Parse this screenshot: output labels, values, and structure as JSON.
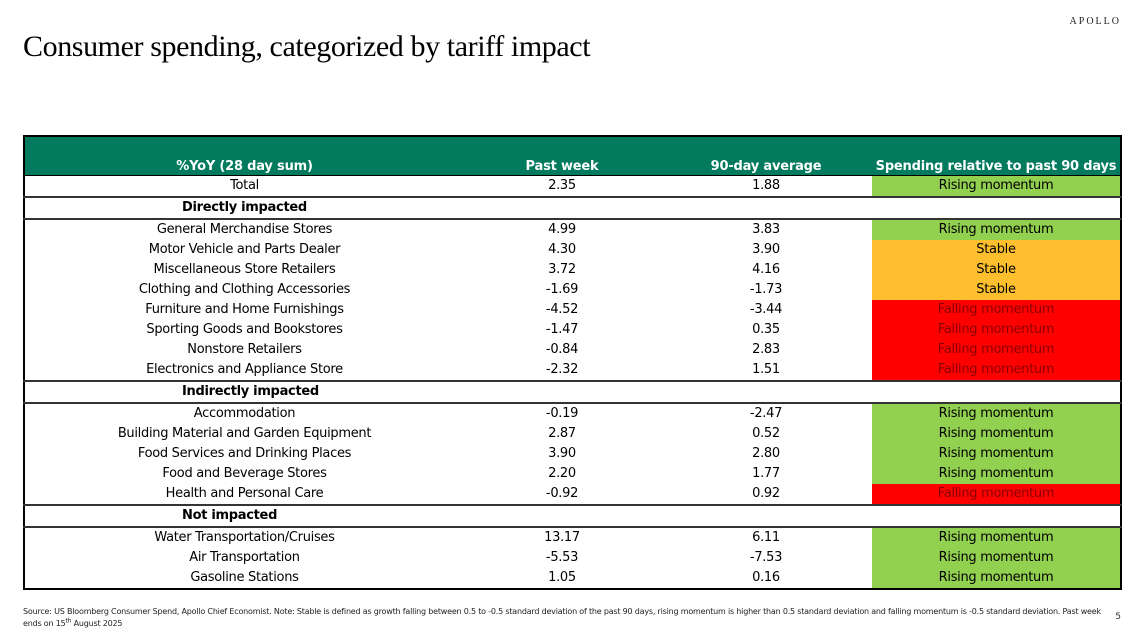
{
  "logo": "APOLLO",
  "title": "Consumer spending, categorized by tariff impact",
  "table": {
    "headers": [
      "%YoY (28 day sum)",
      "Past week",
      "90-day average",
      "Spending relative to past 90 days"
    ],
    "total": {
      "label": "Total",
      "past_week": "2.35",
      "avg_90": "1.88",
      "status": "Rising momentum",
      "status_type": "rising"
    },
    "sections": [
      {
        "title": "Directly impacted",
        "rows": [
          {
            "label": "General Merchandise Stores",
            "past_week": "4.99",
            "avg_90": "3.83",
            "status": "Rising momentum",
            "status_type": "rising"
          },
          {
            "label": "Motor Vehicle and Parts Dealer",
            "past_week": "4.30",
            "avg_90": "3.90",
            "status": "Stable",
            "status_type": "stable"
          },
          {
            "label": "Miscellaneous Store Retailers",
            "past_week": "3.72",
            "avg_90": "4.16",
            "status": "Stable",
            "status_type": "stable"
          },
          {
            "label": "Clothing and Clothing Accessories",
            "past_week": "-1.69",
            "avg_90": "-1.73",
            "status": "Stable",
            "status_type": "stable"
          },
          {
            "label": "Furniture and Home Furnishings",
            "past_week": "-4.52",
            "avg_90": "-3.44",
            "status": "Falling momentum",
            "status_type": "falling"
          },
          {
            "label": "Sporting Goods and Bookstores",
            "past_week": "-1.47",
            "avg_90": "0.35",
            "status": "Falling momentum",
            "status_type": "falling"
          },
          {
            "label": "Nonstore Retailers",
            "past_week": "-0.84",
            "avg_90": "2.83",
            "status": "Falling momentum",
            "status_type": "falling"
          },
          {
            "label": "Electronics and Appliance Store",
            "past_week": "-2.32",
            "avg_90": "1.51",
            "status": "Falling momentum",
            "status_type": "falling"
          }
        ]
      },
      {
        "title": "Indirectly impacted",
        "rows": [
          {
            "label": "Accommodation",
            "past_week": "-0.19",
            "avg_90": "-2.47",
            "status": "Rising momentum",
            "status_type": "rising"
          },
          {
            "label": "Building Material and Garden Equipment",
            "past_week": "2.87",
            "avg_90": "0.52",
            "status": "Rising momentum",
            "status_type": "rising"
          },
          {
            "label": "Food Services and Drinking Places",
            "past_week": "3.90",
            "avg_90": "2.80",
            "status": "Rising momentum",
            "status_type": "rising"
          },
          {
            "label": "Food and Beverage Stores",
            "past_week": "2.20",
            "avg_90": "1.77",
            "status": "Rising momentum",
            "status_type": "rising"
          },
          {
            "label": "Health and Personal Care",
            "past_week": "-0.92",
            "avg_90": "0.92",
            "status": "Falling momentum",
            "status_type": "falling"
          }
        ]
      },
      {
        "title": "Not impacted",
        "rows": [
          {
            "label": "Water Transportation/Cruises",
            "past_week": "13.17",
            "avg_90": "6.11",
            "status": "Rising momentum",
            "status_type": "rising"
          },
          {
            "label": "Air Transportation",
            "past_week": "-5.53",
            "avg_90": "-7.53",
            "status": "Rising momentum",
            "status_type": "rising"
          },
          {
            "label": "Gasoline Stations",
            "past_week": "1.05",
            "avg_90": "0.16",
            "status": "Rising momentum",
            "status_type": "rising"
          }
        ]
      }
    ],
    "status_colors": {
      "rising": "#92d050",
      "stable": "#fdbf2d",
      "falling": "#ff0000"
    },
    "header_color": "#017a5e"
  },
  "footnote": {
    "text_before_sup": "Source: US Bloomberg Consumer Spend, Apollo Chief Economist. Note: Stable is defined as growth falling between 0.5 to -0.5 standard deviation of the past 90 days, rising momentum is higher than 0.5 standard deviation and falling momentum is -0.5 standard deviation. Past week ends on 15",
    "sup": "th",
    "text_after_sup": " August 2025"
  },
  "page_number": "5"
}
